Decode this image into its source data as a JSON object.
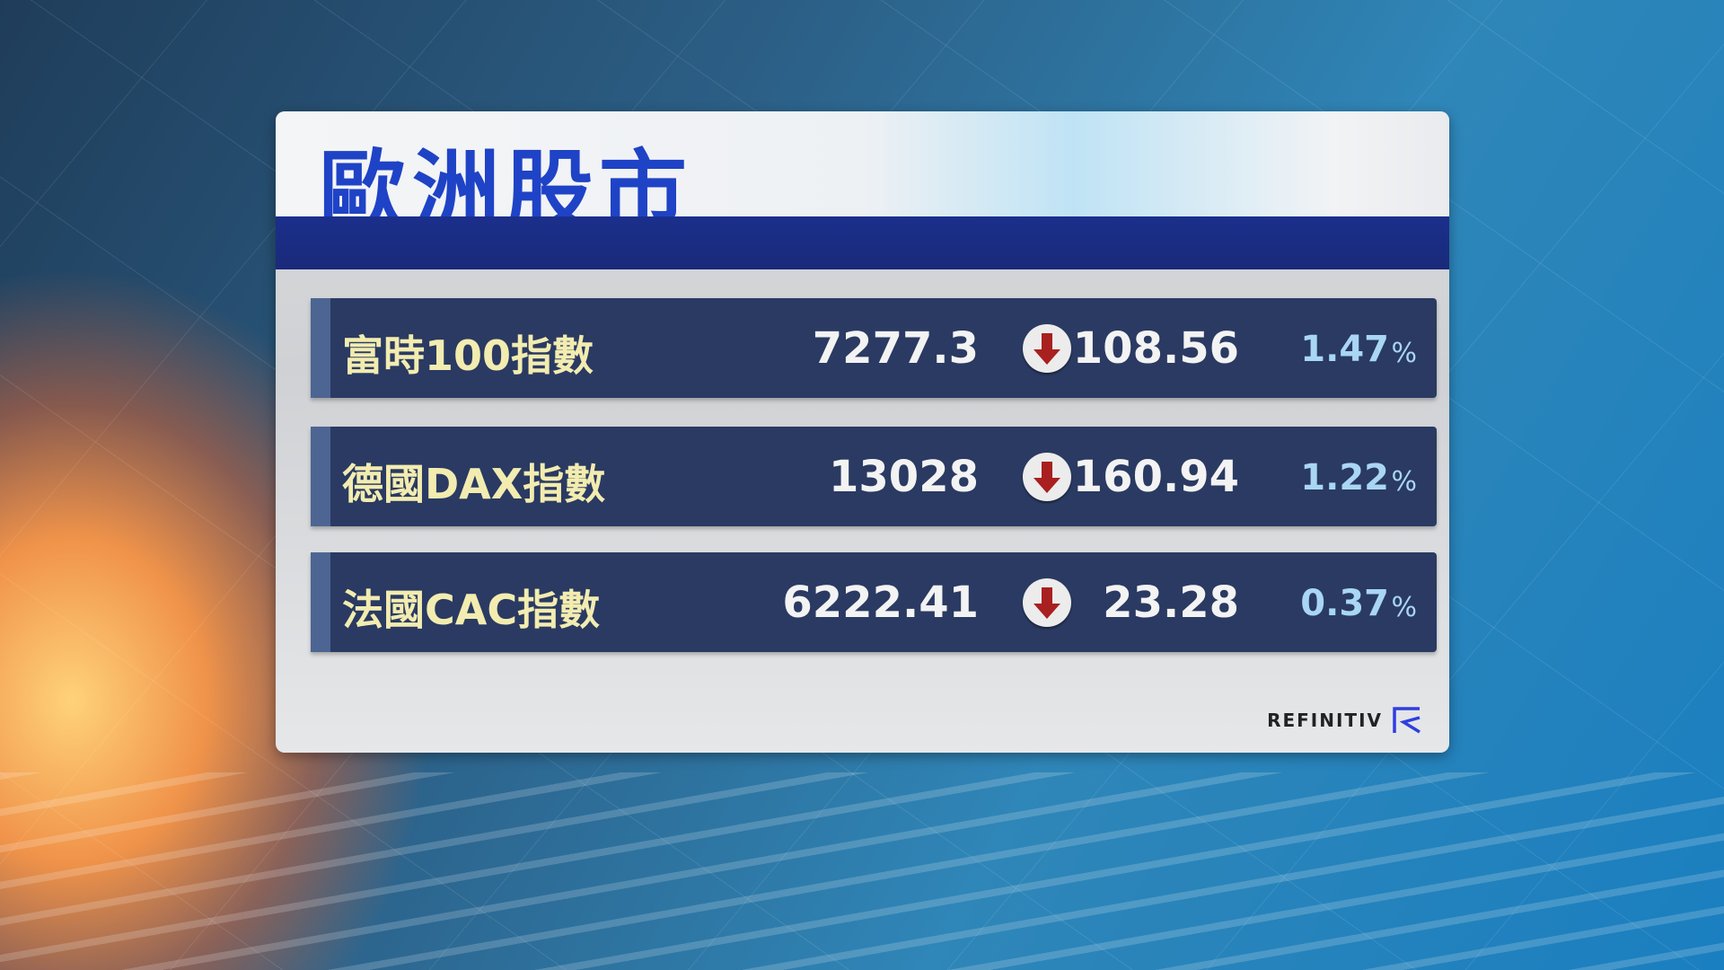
{
  "title": "歐洲股市",
  "rows": [
    {
      "name": "富時100指數",
      "value": "7277.3",
      "direction": "down",
      "change": "108.56",
      "percent": "1.47",
      "percent_sign": "%"
    },
    {
      "name": "德國DAX指數",
      "value": "13028",
      "direction": "down",
      "change": "160.94",
      "percent": "1.22",
      "percent_sign": "%"
    },
    {
      "name": "法國CAC指數",
      "value": "6222.41",
      "direction": "down",
      "change": "23.28",
      "percent": "0.37",
      "percent_sign": "%"
    }
  ],
  "source_logo": "REFINITIV",
  "colors": {
    "title": "#1f43c6",
    "row_bg": "#2a3a62",
    "label": "#f2ecb0",
    "percent": "#a9d6f2",
    "down_arrow": "#a8201f",
    "logo": "#2f3ee0"
  }
}
